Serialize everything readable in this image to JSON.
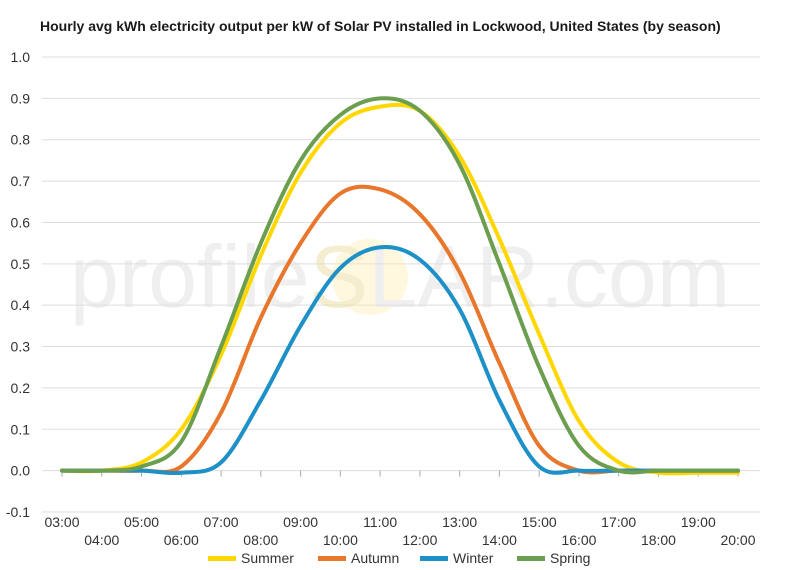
{
  "chart_data": {
    "type": "line",
    "title": "Hourly avg kWh electricity output per kW of Solar PV installed in Lockwood, United States (by season)",
    "xlabel": "",
    "ylabel": "",
    "x": [
      "03:00",
      "04:00",
      "05:00",
      "06:00",
      "07:00",
      "08:00",
      "09:00",
      "10:00",
      "11:00",
      "12:00",
      "13:00",
      "14:00",
      "15:00",
      "16:00",
      "17:00",
      "18:00",
      "19:00",
      "20:00"
    ],
    "ylim": [
      -0.1,
      1.0
    ],
    "yticks": [
      "-0.1",
      "0.0",
      "0.1",
      "0.2",
      "0.3",
      "0.4",
      "0.5",
      "0.6",
      "0.7",
      "0.8",
      "0.9",
      "1.0"
    ],
    "grid": true,
    "legend_position": "bottom",
    "series": [
      {
        "name": "Summer",
        "color": "#FFD700",
        "values": [
          0.0,
          0.0,
          0.02,
          0.1,
          0.28,
          0.52,
          0.72,
          0.84,
          0.88,
          0.87,
          0.76,
          0.56,
          0.33,
          0.12,
          0.02,
          -0.005,
          -0.005,
          -0.005
        ]
      },
      {
        "name": "Autumn",
        "color": "#E8762B",
        "values": [
          0.0,
          0.0,
          0.0,
          0.01,
          0.14,
          0.37,
          0.55,
          0.67,
          0.68,
          0.62,
          0.48,
          0.26,
          0.06,
          0.0,
          0.0,
          0.0,
          0.0,
          0.0
        ]
      },
      {
        "name": "Winter",
        "color": "#1E90C8",
        "values": [
          0.0,
          0.0,
          0.0,
          -0.005,
          0.02,
          0.17,
          0.35,
          0.49,
          0.54,
          0.51,
          0.39,
          0.17,
          0.01,
          0.0,
          0.0,
          0.0,
          0.0,
          0.0
        ]
      },
      {
        "name": "Spring",
        "color": "#6B9E4F",
        "values": [
          0.0,
          0.0,
          0.01,
          0.07,
          0.3,
          0.55,
          0.75,
          0.86,
          0.9,
          0.87,
          0.74,
          0.5,
          0.25,
          0.06,
          0.0,
          0.0,
          0.0,
          0.0
        ]
      }
    ]
  },
  "watermark": {
    "text_left": "profile",
    "text_s": "S",
    "text_right": "LAR.com"
  }
}
